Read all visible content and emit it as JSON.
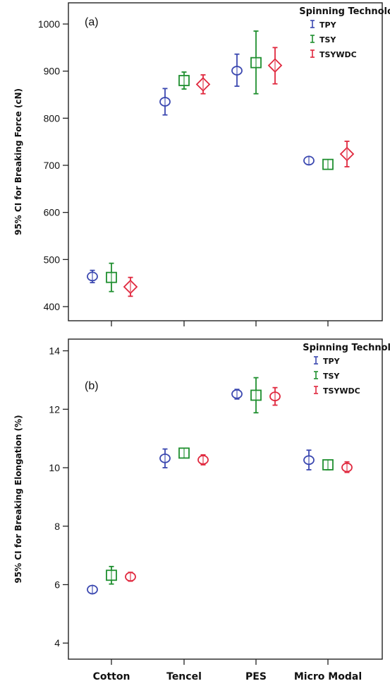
{
  "chart_data": [
    {
      "type": "scatter",
      "panel_label": "(a)",
      "ylabel": "95% CI for Breaking Force (cN)",
      "categories": [
        "Cotton",
        "Tencel",
        "PES",
        "Micro Modal"
      ],
      "ylim": [
        370,
        1045
      ],
      "yticks": [
        400,
        500,
        600,
        700,
        800,
        900,
        1000
      ],
      "legend": {
        "title": "Spinning Technology",
        "placement": "top-right"
      },
      "series": [
        {
          "name": "TPY",
          "marker": "circle",
          "color": "#3b48b0",
          "values": [
            464,
            835,
            901,
            710
          ],
          "ci_low": [
            451,
            807,
            868,
            706
          ],
          "ci_high": [
            477,
            863,
            936,
            715
          ]
        },
        {
          "name": "TSY",
          "marker": "square",
          "color": "#1f8f2f",
          "values": [
            462,
            880,
            918,
            702
          ],
          "ci_low": [
            432,
            862,
            852,
            693
          ],
          "ci_high": [
            492,
            898,
            985,
            711
          ]
        },
        {
          "name": "TSYWDC",
          "marker": "diamond",
          "color": "#e0283e",
          "values": [
            442,
            872,
            912,
            724
          ],
          "ci_low": [
            422,
            852,
            873,
            697
          ],
          "ci_high": [
            462,
            892,
            950,
            751
          ]
        }
      ]
    },
    {
      "type": "scatter",
      "panel_label": "(b)",
      "ylabel": "95% CI for Breaking Elongation (%)",
      "categories": [
        "Cotton",
        "Tencel",
        "PES",
        "Micro Modal"
      ],
      "ylim": [
        3.45,
        14.4
      ],
      "yticks": [
        4,
        6,
        8,
        10,
        12,
        14
      ],
      "legend": {
        "title": "Spinning Technology",
        "placement": "top-right"
      },
      "series": [
        {
          "name": "TPY",
          "marker": "circle",
          "color": "#3b48b0",
          "values": [
            5.83,
            10.32,
            12.52,
            10.26
          ],
          "ci_low": [
            5.72,
            10.0,
            12.35,
            9.93
          ],
          "ci_high": [
            5.94,
            10.64,
            12.68,
            10.6
          ]
        },
        {
          "name": "TSY",
          "marker": "square",
          "color": "#1f8f2f",
          "values": [
            6.32,
            10.5,
            12.48,
            10.1
          ],
          "ci_low": [
            6.02,
            10.38,
            11.88,
            9.93
          ],
          "ci_high": [
            6.62,
            10.62,
            13.08,
            10.27
          ]
        },
        {
          "name": "TSYWDC",
          "marker": "circle",
          "color": "#e0283e",
          "values": [
            6.27,
            10.27,
            12.44,
            10.01
          ],
          "ci_low": [
            6.12,
            10.1,
            12.14,
            9.84
          ],
          "ci_high": [
            6.42,
            10.44,
            12.74,
            10.2
          ]
        }
      ]
    }
  ]
}
